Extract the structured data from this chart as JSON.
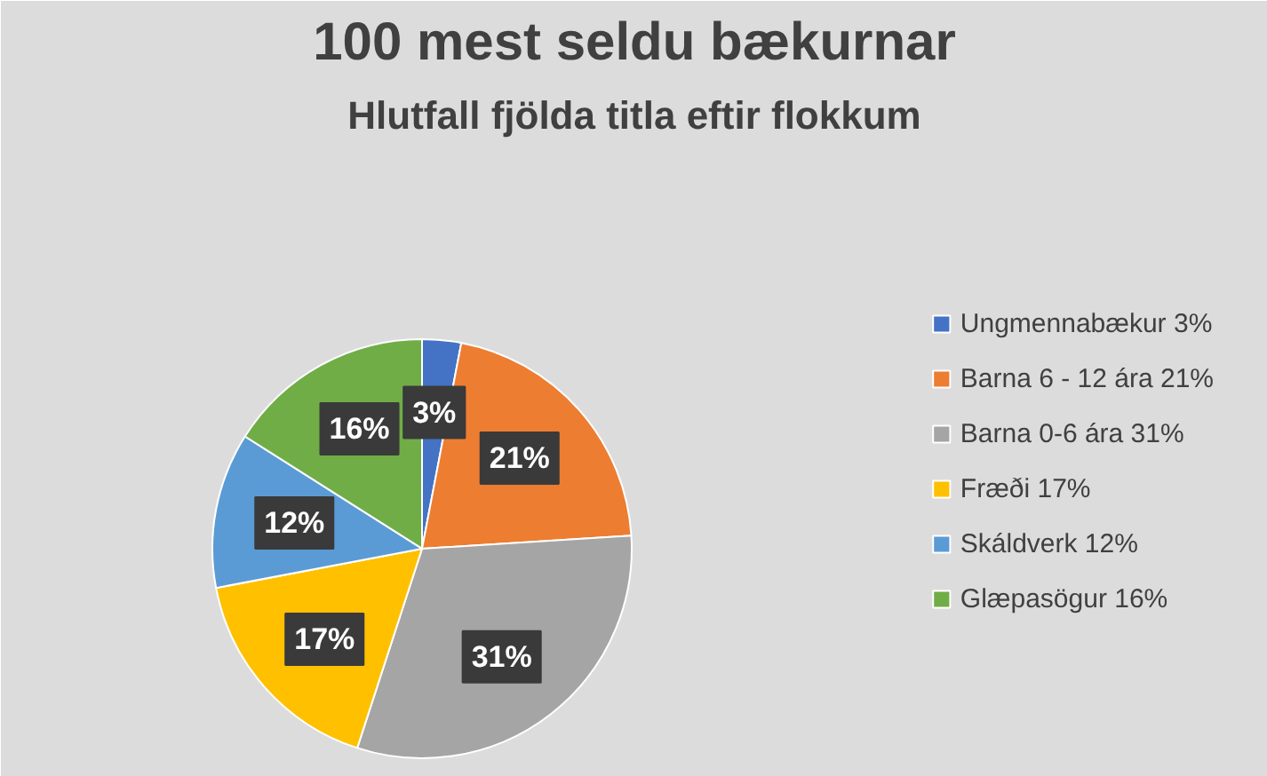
{
  "chart_data": {
    "type": "pie",
    "title": "100 mest seldu bækurnar",
    "subtitle": "Hlutfall fjölda titla eftir flokkum",
    "categories": [
      "Ungmennabækur 3%",
      "Barna 6 - 12 ára 21%",
      "Barna 0-6 ára 31%",
      "Fræði 17%",
      "Skáldverk 12%",
      "Glæpasögur 16%"
    ],
    "values": [
      3,
      21,
      31,
      17,
      12,
      16
    ],
    "colors": [
      "#4472c4",
      "#ed7d31",
      "#a5a5a5",
      "#ffc000",
      "#5b9bd5",
      "#70ad47"
    ],
    "value_labels": [
      "3%",
      "21%",
      "31%",
      "17%",
      "12%",
      "16%"
    ],
    "legend": "right"
  }
}
